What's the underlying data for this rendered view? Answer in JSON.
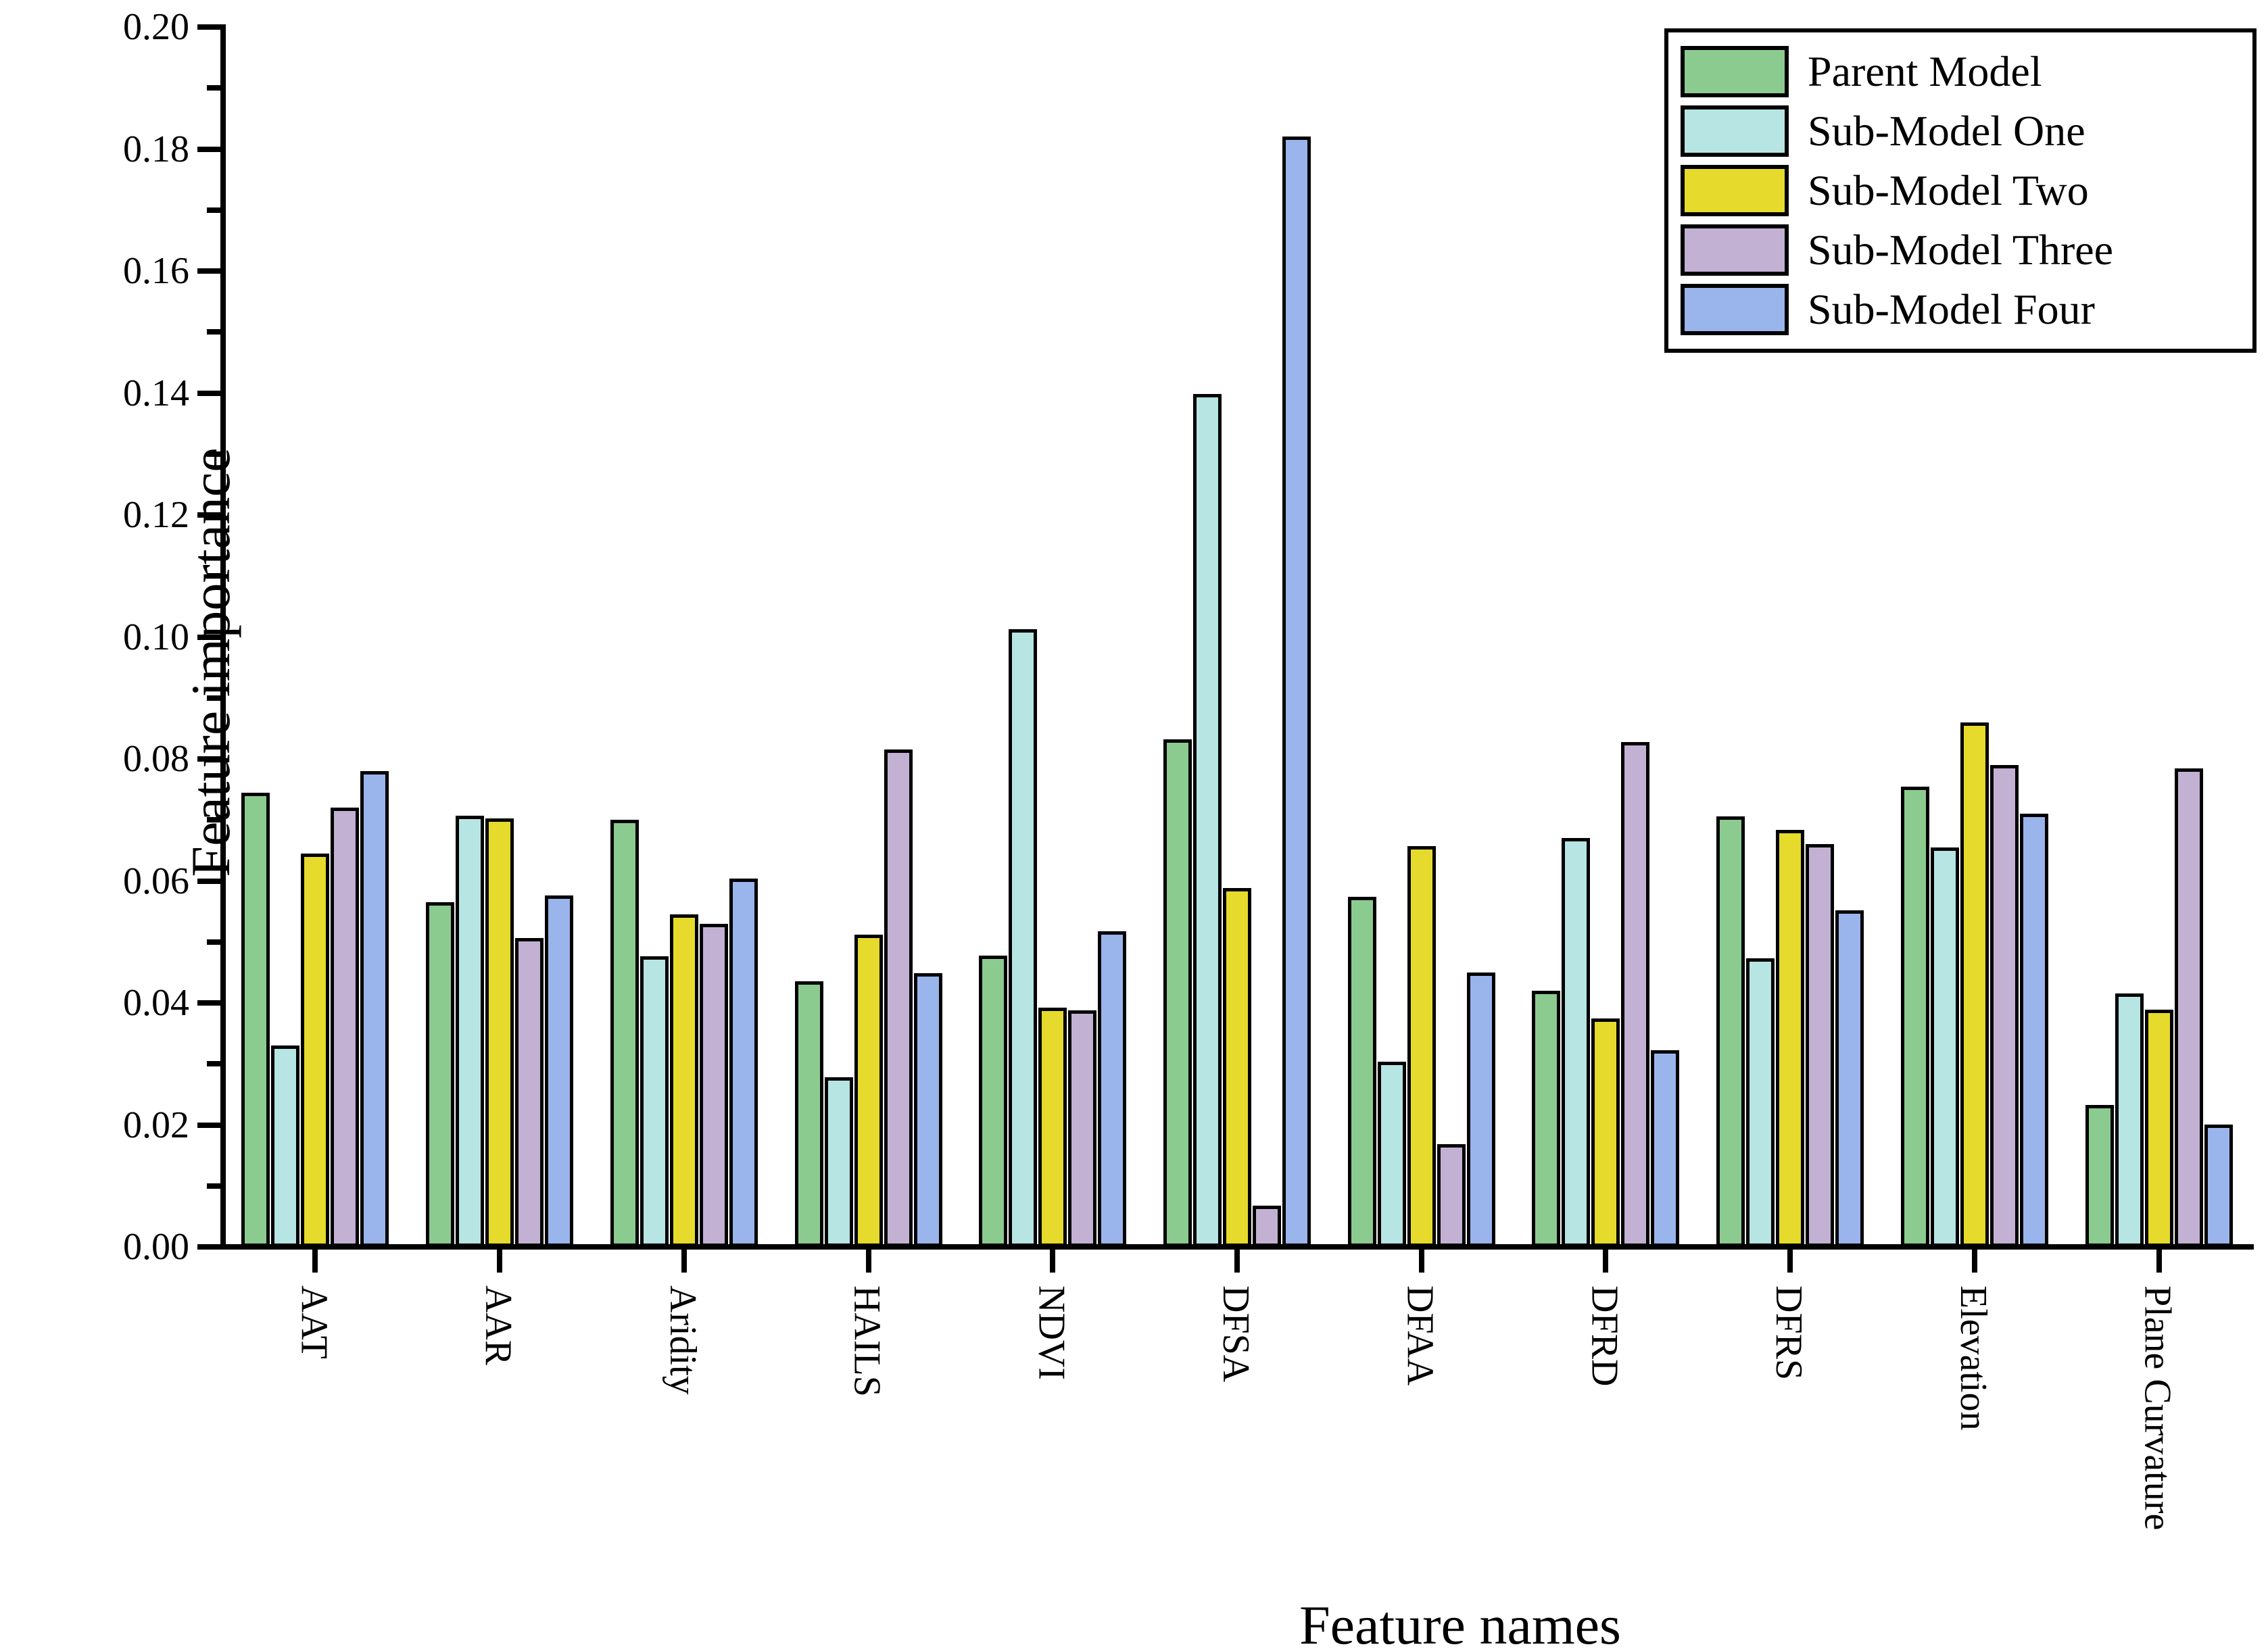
{
  "chart_data": {
    "type": "bar",
    "title": "",
    "xlabel": "Feature names",
    "ylabel": "Feature importance",
    "ylim": [
      0.0,
      0.2
    ],
    "ytick_step": 0.02,
    "ytick_minor_step": 0.01,
    "ytick_labels": [
      "0.00",
      "0.02",
      "0.04",
      "0.06",
      "0.08",
      "0.10",
      "0.12",
      "0.14",
      "0.16",
      "0.18",
      "0.20"
    ],
    "grid": false,
    "legend_position": "top-right",
    "bar_border_color": "#000000",
    "categories": [
      "AAT",
      "AAR",
      "Aridity",
      "HAILS",
      "NDVI",
      "DFSA",
      "DFAA",
      "DFRD",
      "DFRS",
      "Elevation",
      "Plane Curvature"
    ],
    "series": [
      {
        "name": "Parent Model",
        "color": "#8ccb8f",
        "values": [
          0.0745,
          0.0565,
          0.07,
          0.0436,
          0.0478,
          0.0832,
          0.0574,
          0.042,
          0.0706,
          0.0755,
          0.0233
        ]
      },
      {
        "name": "Sub-Model One",
        "color": "#b7e5e3",
        "values": [
          0.033,
          0.0707,
          0.0477,
          0.0278,
          0.1013,
          0.1398,
          0.0304,
          0.067,
          0.0473,
          0.0655,
          0.0415
        ]
      },
      {
        "name": "Sub-Model Two",
        "color": "#e6da2c",
        "values": [
          0.0645,
          0.0702,
          0.0545,
          0.0512,
          0.0392,
          0.0588,
          0.0657,
          0.0375,
          0.0684,
          0.086,
          0.0389
        ]
      },
      {
        "name": "Sub-Model Three",
        "color": "#c3b1d3",
        "values": [
          0.072,
          0.0506,
          0.053,
          0.0816,
          0.0388,
          0.0068,
          0.0168,
          0.0828,
          0.066,
          0.079,
          0.0785
        ]
      },
      {
        "name": "Sub-Model Four",
        "color": "#9ab5ec",
        "values": [
          0.078,
          0.0576,
          0.0604,
          0.0449,
          0.0517,
          0.182,
          0.045,
          0.0323,
          0.0552,
          0.071,
          0.0201
        ]
      }
    ]
  }
}
